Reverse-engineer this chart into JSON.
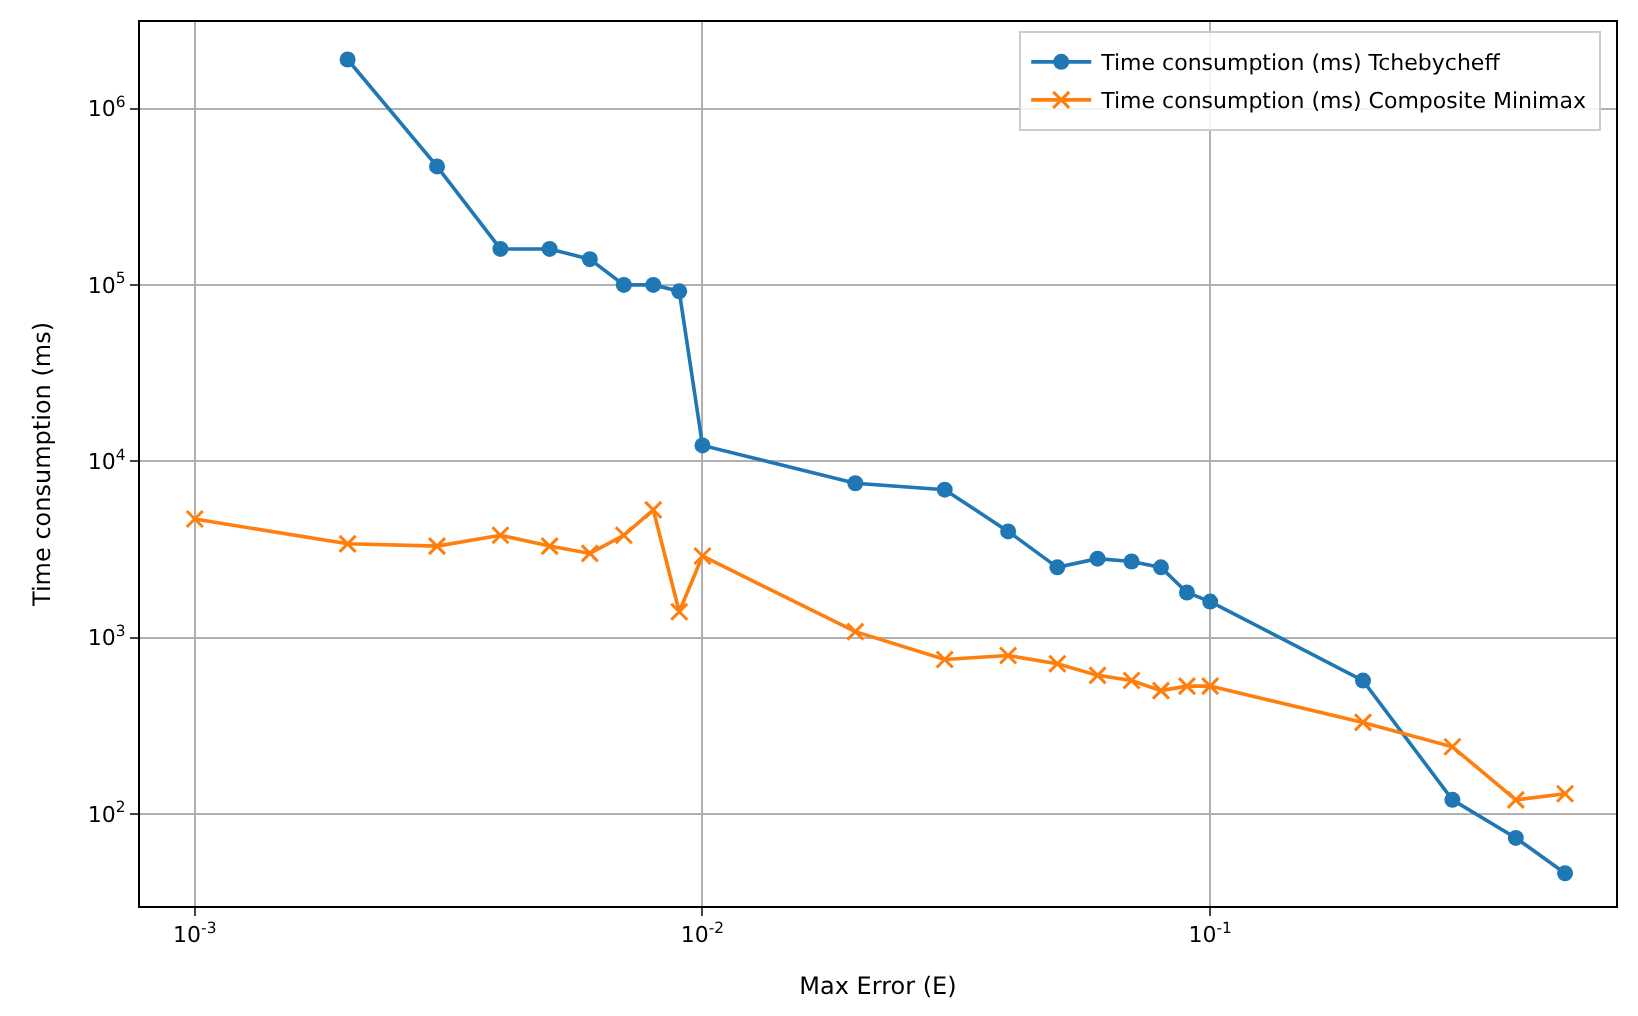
{
  "chart_data": {
    "type": "line",
    "xlabel": "Max Error (E)",
    "ylabel": "Time consumption (ms)",
    "log": "xy",
    "grid": true,
    "legend": "top right",
    "xlim": [
      0.00078,
      0.63
    ],
    "ylim": [
      30,
      3100000
    ],
    "xticks": [
      {
        "value": 0.001,
        "label": "10$^{-3}$"
      },
      {
        "value": 0.01,
        "label": "10$^{-2}$"
      },
      {
        "value": 0.1,
        "label": "10$^{-1}$"
      }
    ],
    "yticks": [
      {
        "value": 100,
        "label": "10$^{2}$"
      },
      {
        "value": 1000,
        "label": "10$^{3}$"
      },
      {
        "value": 10000,
        "label": "10$^{4}$"
      },
      {
        "value": 100000,
        "label": "10$^{5}$"
      },
      {
        "value": 1000000,
        "label": "10$^{6}$"
      }
    ],
    "series": [
      {
        "name": "Time consumption (ms) Tchebycheff",
        "color": "#1f77b4",
        "marker": "circle",
        "x": [
          0.002,
          0.003,
          0.004,
          0.005,
          0.006,
          0.007,
          0.008,
          0.009,
          0.01,
          0.02,
          0.03,
          0.04,
          0.05,
          0.06,
          0.07,
          0.08,
          0.09,
          0.1,
          0.2,
          0.3,
          0.4,
          0.5
        ],
        "values": [
          1900000,
          470000,
          160000,
          160000,
          140000,
          100000,
          100000,
          92000,
          12300,
          7500,
          6900,
          4000,
          2500,
          2800,
          2700,
          2500,
          1800,
          1600,
          570,
          120,
          73,
          46
        ]
      },
      {
        "name": "Time consumption (ms) Composite Minimax",
        "color": "#ff7f0e",
        "marker": "cross",
        "x": [
          0.001,
          0.002,
          0.003,
          0.004,
          0.005,
          0.006,
          0.007,
          0.008,
          0.009,
          0.01,
          0.02,
          0.03,
          0.04,
          0.05,
          0.06,
          0.07,
          0.08,
          0.09,
          0.1,
          0.2,
          0.3,
          0.4,
          0.5
        ],
        "values": [
          4700,
          3400,
          3300,
          3800,
          3300,
          3000,
          3800,
          5300,
          1400,
          2900,
          1080,
          750,
          790,
          710,
          610,
          570,
          500,
          530,
          530,
          330,
          240,
          120,
          130
        ]
      }
    ]
  }
}
